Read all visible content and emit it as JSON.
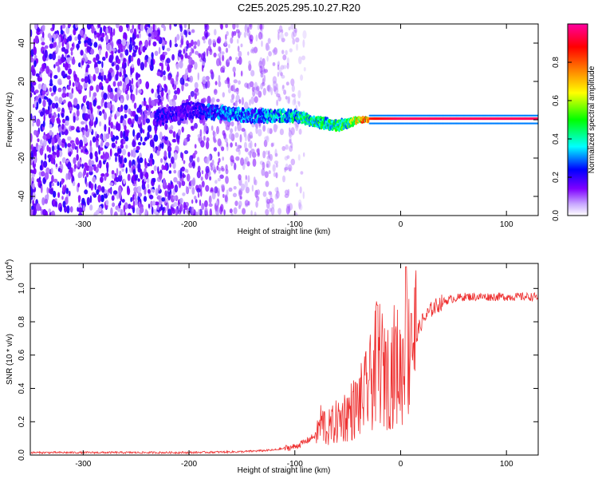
{
  "title": "C2E5.2025.295.10.27.R20",
  "chart_data": [
    {
      "type": "heatmap",
      "title": "C2E5.2025.295.10.27.R20",
      "xlabel": "Height of straight line (km)",
      "ylabel": "Frequency (Hz)",
      "xlim": [
        -350,
        130
      ],
      "ylim": [
        -50,
        50
      ],
      "xticks": [
        -300,
        -200,
        -100,
        0,
        100
      ],
      "yticks": [
        -40,
        -20,
        0,
        20,
        40
      ],
      "xtick_labels": [
        "-300",
        "-200",
        "-100",
        "0",
        "100"
      ],
      "ytick_labels": [
        "-40",
        "-20",
        "0",
        "20",
        "40"
      ],
      "colorbar": {
        "label": "Normalized spectral amplitude",
        "range": [
          0,
          1
        ],
        "ticks": [
          0.0,
          0.2,
          0.4,
          0.6,
          0.8
        ],
        "tick_labels": [
          "0.0",
          "0.2",
          "0.4",
          "0.6",
          "0.8"
        ],
        "colors": [
          "#ffffff",
          "#7f00ff",
          "#0000ff",
          "#00ffff",
          "#00ff00",
          "#ffff00",
          "#ff8000",
          "#ff0000",
          "#ff00a0"
        ]
      },
      "signal_trace": {
        "description_values": "center frequency (Hz) vs height (km)",
        "x": [
          -230,
          -200,
          -180,
          -160,
          -140,
          -120,
          -100,
          -80,
          -60,
          -50,
          -40,
          -30,
          -20,
          0,
          50,
          100,
          130
        ],
        "y": [
          1,
          5,
          4,
          3,
          2,
          2,
          2,
          -1,
          -3,
          -2,
          0,
          0,
          0,
          0,
          0,
          0,
          0
        ],
        "amplitude": [
          0.25,
          0.2,
          0.3,
          0.35,
          0.35,
          0.4,
          0.45,
          0.5,
          0.5,
          0.55,
          0.8,
          0.85,
          0.9,
          0.95,
          0.95,
          0.95,
          0.95
        ]
      },
      "noise_region": {
        "x_from": -350,
        "x_to": -110
      }
    },
    {
      "type": "line",
      "xlabel": "Height of straight line (km)",
      "ylabel": "SNR (10 * v/v)",
      "multiplier_label": "(x10",
      "multiplier_exponent": "4",
      "multiplier_close": ")",
      "xlim": [
        -350,
        130
      ],
      "ylim": [
        0,
        1.15
      ],
      "xticks": [
        -300,
        -200,
        -100,
        0,
        100
      ],
      "yticks": [
        0.0,
        0.2,
        0.4,
        0.6,
        0.8,
        1.0
      ],
      "xtick_labels": [
        "-300",
        "-200",
        "-100",
        "0",
        "100"
      ],
      "ytick_labels": [
        "0.0",
        "0.2",
        "0.4",
        "0.6",
        "0.8",
        "1.0"
      ],
      "line_color": "#ee3030",
      "series": [
        {
          "name": "SNR",
          "x": [
            -350,
            -300,
            -250,
            -200,
            -150,
            -120,
            -100,
            -90,
            -80,
            -75,
            -70,
            -60,
            -50,
            -40,
            -30,
            -25,
            -20,
            -15,
            -10,
            -5,
            0,
            5,
            10,
            15,
            20,
            30,
            40,
            50,
            60,
            80,
            100,
            130
          ],
          "y": [
            0.015,
            0.015,
            0.015,
            0.015,
            0.02,
            0.03,
            0.05,
            0.08,
            0.12,
            0.2,
            0.15,
            0.2,
            0.25,
            0.3,
            0.4,
            0.5,
            0.6,
            0.45,
            0.5,
            0.55,
            0.5,
            0.6,
            0.65,
            0.72,
            0.8,
            0.88,
            0.92,
            0.94,
            0.95,
            0.95,
            0.95,
            0.95
          ],
          "peaks": [
            {
              "x": -72,
              "y": 0.26
            },
            {
              "x": -45,
              "y": 0.38
            },
            {
              "x": -30,
              "y": 0.45
            },
            {
              "x": -22,
              "y": 0.9
            },
            {
              "x": -14,
              "y": 0.68
            },
            {
              "x": 5,
              "y": 1.13
            },
            {
              "x": 10,
              "y": 0.85
            }
          ]
        }
      ]
    }
  ]
}
